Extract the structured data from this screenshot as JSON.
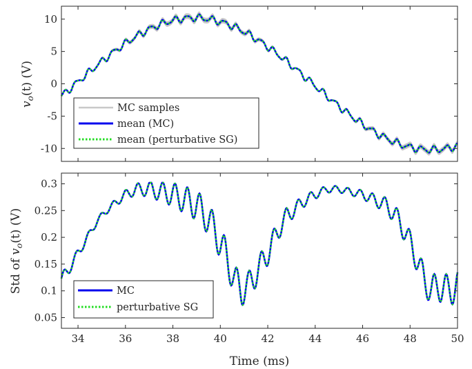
{
  "chart_data": [
    {
      "type": "line",
      "ylabel": "v_o(t) (V)",
      "ylabel_math": {
        "base": "v",
        "sub": "o",
        "rest": "(t) (V)"
      },
      "xlim": [
        33.3,
        50
      ],
      "ylim": [
        -12,
        12
      ],
      "xticks": [
        34,
        36,
        38,
        40,
        42,
        44,
        46,
        48,
        50
      ],
      "xtick_labels": [
        "34",
        "36",
        "38",
        "40",
        "42",
        "44",
        "46",
        "48",
        "50"
      ],
      "yticks": [
        -10,
        -5,
        0,
        5,
        10
      ],
      "ytick_labels": [
        "-10",
        "-5",
        "0",
        "5",
        "10"
      ],
      "grid": false,
      "legend_placement": "bottom-left",
      "signal_model": {
        "fundamental": {
          "amplitude": 10.2,
          "period_ms": 20,
          "phase_ms": 33.9
        },
        "ripple_amplitude": 0.45,
        "ripple_period_ms": 0.52,
        "mc_band_halfwidth": [
          0.06,
          0.45
        ]
      },
      "series": [
        {
          "name": "MC samples",
          "color": "#c8c8c8",
          "style": "band"
        },
        {
          "name": "mean (MC)",
          "color": "#0000ee",
          "style": "solid"
        },
        {
          "name": "mean (perturbative SG)",
          "color": "#22dd22",
          "style": "dotted"
        }
      ]
    },
    {
      "type": "line",
      "ylabel": "Std of v_o(t) (V)",
      "ylabel_math": {
        "prefix": "Std of ",
        "base": "v",
        "sub": "o",
        "rest": "(t) (V)"
      },
      "xlabel": "Time (ms)",
      "xlim": [
        33.3,
        50
      ],
      "ylim": [
        0.03,
        0.32
      ],
      "xticks": [
        34,
        36,
        38,
        40,
        42,
        44,
        46,
        48,
        50
      ],
      "xtick_labels": [
        "34",
        "36",
        "38",
        "40",
        "42",
        "44",
        "46",
        "48",
        "50"
      ],
      "yticks": [
        0.05,
        0.1,
        0.15,
        0.2,
        0.25,
        0.3
      ],
      "ytick_labels": [
        "0.05",
        "0.1",
        "0.15",
        "0.2",
        "0.25",
        "0.3"
      ],
      "grid": false,
      "legend_placement": "bottom-left",
      "envelope_points": {
        "x": [
          33.3,
          33.6,
          34.0,
          34.4,
          34.8,
          35.2,
          35.6,
          36.0,
          36.5,
          37.0,
          37.5,
          38.0,
          38.5,
          39.0,
          39.4,
          39.8,
          40.2,
          40.6,
          40.9,
          41.2,
          41.6,
          42.0,
          42.4,
          42.8,
          43.2,
          43.6,
          44.0,
          44.5,
          45.0,
          45.5,
          46.0,
          46.5,
          47.0,
          47.4,
          47.8,
          48.2,
          48.6,
          48.9,
          49.2,
          49.6,
          50.0
        ],
        "y": [
          0.12,
          0.14,
          0.17,
          0.2,
          0.23,
          0.25,
          0.265,
          0.28,
          0.29,
          0.29,
          0.285,
          0.28,
          0.27,
          0.26,
          0.24,
          0.21,
          0.17,
          0.12,
          0.1,
          0.11,
          0.14,
          0.17,
          0.21,
          0.24,
          0.255,
          0.27,
          0.28,
          0.29,
          0.29,
          0.285,
          0.28,
          0.27,
          0.26,
          0.24,
          0.21,
          0.17,
          0.12,
          0.1,
          0.11,
          0.1,
          0.11
        ]
      },
      "ripple_amplitude": 0.03,
      "ripple_period_ms": 0.52,
      "series": [
        {
          "name": "MC",
          "color": "#0000ee",
          "style": "solid"
        },
        {
          "name": "perturbative SG",
          "color": "#22dd22",
          "style": "dotted"
        }
      ]
    }
  ]
}
